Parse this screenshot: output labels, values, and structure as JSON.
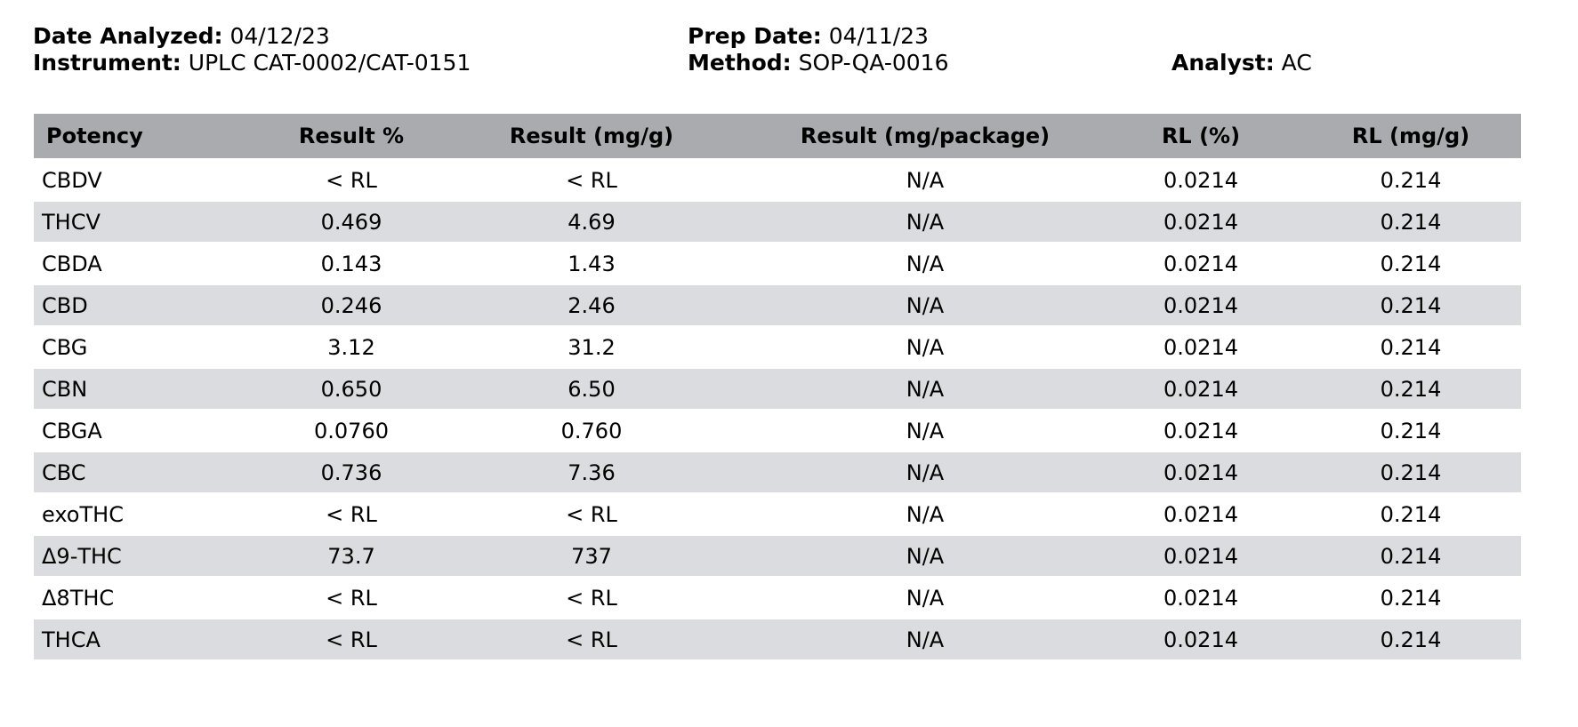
{
  "meta": {
    "date_analyzed": {
      "label": "Date Analyzed:",
      "value": "04/12/23"
    },
    "prep_date": {
      "label": "Prep Date:",
      "value": "04/11/23"
    },
    "instrument": {
      "label": "Instrument:",
      "value": "UPLC CAT-0002/CAT-0151"
    },
    "method": {
      "label": "Method:",
      "value": "SOP-QA-0016"
    },
    "analyst": {
      "label": "Analyst:",
      "value": "AC"
    }
  },
  "table": {
    "columns": [
      "Potency",
      "Result %",
      "Result (mg/g)",
      "Result (mg/package)",
      "RL (%)",
      "RL (mg/g)"
    ],
    "rows": [
      [
        "CBDV",
        "< RL",
        "< RL",
        "N/A",
        "0.0214",
        "0.214"
      ],
      [
        "THCV",
        "0.469",
        "4.69",
        "N/A",
        "0.0214",
        "0.214"
      ],
      [
        "CBDA",
        "0.143",
        "1.43",
        "N/A",
        "0.0214",
        "0.214"
      ],
      [
        "CBD",
        "0.246",
        "2.46",
        "N/A",
        "0.0214",
        "0.214"
      ],
      [
        "CBG",
        "3.12",
        "31.2",
        "N/A",
        "0.0214",
        "0.214"
      ],
      [
        "CBN",
        "0.650",
        "6.50",
        "N/A",
        "0.0214",
        "0.214"
      ],
      [
        "CBGA",
        "0.0760",
        "0.760",
        "N/A",
        "0.0214",
        "0.214"
      ],
      [
        "CBC",
        "0.736",
        "7.36",
        "N/A",
        "0.0214",
        "0.214"
      ],
      [
        "exoTHC",
        "< RL",
        "< RL",
        "N/A",
        "0.0214",
        "0.214"
      ],
      [
        "Δ9-THC",
        "73.7",
        "737",
        "N/A",
        "0.0214",
        "0.214"
      ],
      [
        "Δ8THC",
        "< RL",
        "< RL",
        "N/A",
        "0.0214",
        "0.214"
      ],
      [
        "THCA",
        "< RL",
        "< RL",
        "N/A",
        "0.0214",
        "0.214"
      ]
    ]
  },
  "colors": {
    "header_bg": "#a9abaf",
    "row_alt_bg": "#dadcdf",
    "row_bg": "#ffffff",
    "text": "#000000",
    "page_bg": "#ffffff"
  }
}
